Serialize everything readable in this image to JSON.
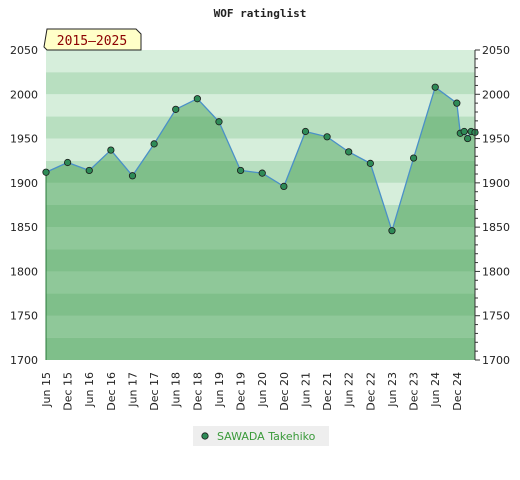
{
  "chart_data": {
    "type": "area",
    "title": "WOF ratinglist",
    "badge": "2015–2025",
    "xlabel": "",
    "ylabel": "",
    "ylim": [
      1700,
      2050
    ],
    "y_ticks": [
      1700,
      1750,
      1800,
      1850,
      1900,
      1950,
      2000,
      2050
    ],
    "x_ticks": [
      {
        "label": "Jun 15",
        "x": 2015.5
      },
      {
        "label": "Dec 15",
        "x": 2016.0
      },
      {
        "label": "Jun 16",
        "x": 2016.5
      },
      {
        "label": "Dec 16",
        "x": 2017.0
      },
      {
        "label": "Jun 17",
        "x": 2017.5
      },
      {
        "label": "Dec 17",
        "x": 2018.0
      },
      {
        "label": "Jun 18",
        "x": 2018.5
      },
      {
        "label": "Dec 18",
        "x": 2019.0
      },
      {
        "label": "Jun 19",
        "x": 2019.5
      },
      {
        "label": "Dec 19",
        "x": 2020.0
      },
      {
        "label": "Jun 20",
        "x": 2020.5
      },
      {
        "label": "Dec 20",
        "x": 2021.0
      },
      {
        "label": "Jun 21",
        "x": 2021.5
      },
      {
        "label": "Dec 21",
        "x": 2022.0
      },
      {
        "label": "Jun 22",
        "x": 2022.5
      },
      {
        "label": "Dec 22",
        "x": 2023.0
      },
      {
        "label": "Jun 23",
        "x": 2023.5
      },
      {
        "label": "Dec 23",
        "x": 2024.0
      },
      {
        "label": "Jun 24",
        "x": 2024.5
      },
      {
        "label": "Dec 24",
        "x": 2025.0
      }
    ],
    "xlim": [
      2015.5,
      2025.42
    ],
    "series": [
      {
        "name": "SAWADA Takehiko",
        "x": [
          2015.5,
          2016.0,
          2016.5,
          2017.0,
          2017.5,
          2018.0,
          2018.5,
          2019.0,
          2019.5,
          2020.0,
          2020.5,
          2021.0,
          2021.5,
          2022.0,
          2022.5,
          2023.0,
          2023.5,
          2024.0,
          2024.5,
          2025.0,
          2025.08,
          2025.17,
          2025.25,
          2025.33,
          2025.42
        ],
        "values": [
          1912,
          1923,
          1914,
          1937,
          1908,
          1944,
          1983,
          1995,
          1969,
          1914,
          1911,
          1896,
          1958,
          1952,
          1935,
          1922,
          1846,
          1928,
          2008,
          1990,
          1956,
          1958,
          1950,
          1958,
          1957
        ]
      }
    ],
    "grid": true,
    "legend": "bottom-center",
    "colors": {
      "line": "#4a90c8",
      "marker_fill": "#2e8b57",
      "area_fill": "#3a9a4a",
      "band_dark": "#b8dfc0",
      "band_light": "#d6eedb",
      "badge_bg": "#ffffc8",
      "badge_text": "#8b0000",
      "legend_text": "#3a9a3a"
    }
  }
}
